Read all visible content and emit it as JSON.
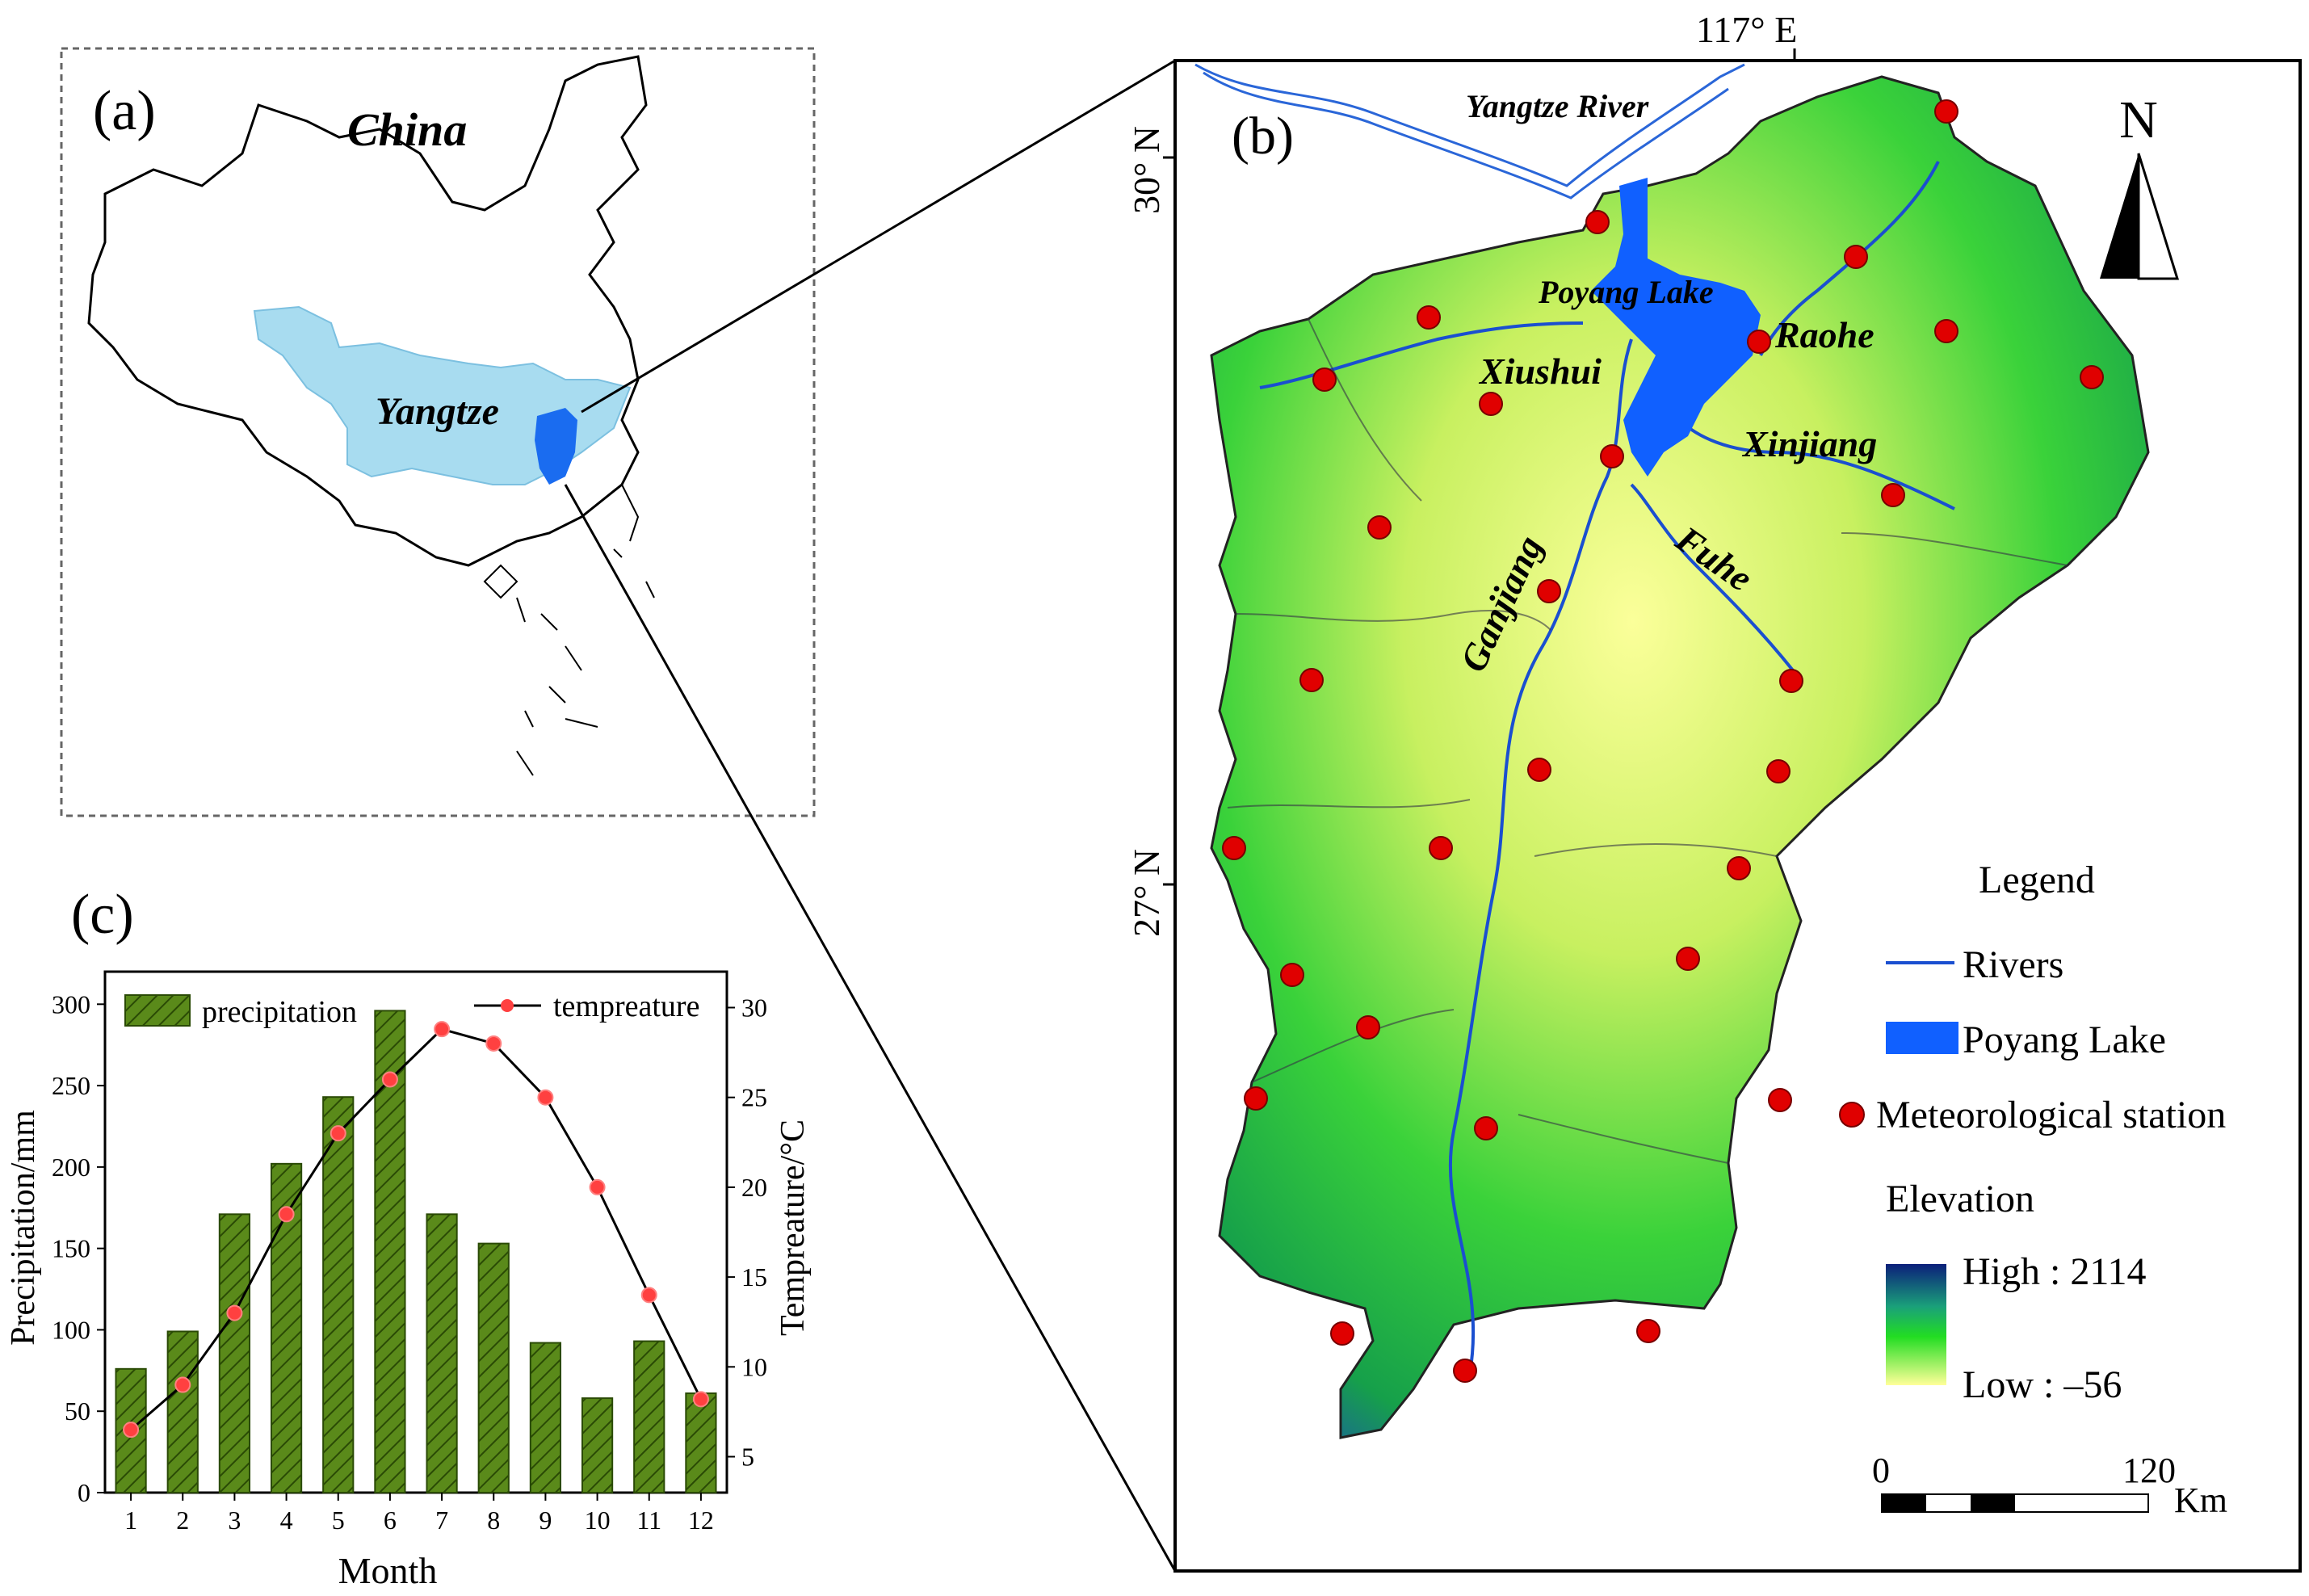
{
  "panel_a": {
    "label": "(a)",
    "country": "China",
    "basin": "Yangtze"
  },
  "panel_b": {
    "label": "(b)",
    "lon_label": "117° E",
    "lat_top": "30° N",
    "lat_mid": "27° N",
    "north": "N",
    "yangtze_river": "Yangtze River",
    "lake": "Poyang Lake",
    "rivers": [
      "Xiushui",
      "Raohe",
      "Xinjiang",
      "Fuhe",
      "Ganjiang"
    ],
    "legend": {
      "title": "Legend",
      "rivers": "Rivers",
      "lake": "Poyang Lake",
      "station": "Meteorological station",
      "elevation": "Elevation",
      "high": "High : 2114",
      "low": "Low : –56"
    },
    "scale": {
      "zero": "0",
      "max": "120",
      "unit": "Km"
    },
    "colors": {
      "station": "#e00000",
      "lake": "#1060ff",
      "river": "#1a4fd0",
      "high": "#0b1f7a",
      "mid": "#22cc22",
      "low": "#ffff99"
    }
  },
  "chart_data": {
    "type": "bar",
    "panel_label": "(c)",
    "categories": [
      "1",
      "2",
      "3",
      "4",
      "5",
      "6",
      "7",
      "8",
      "9",
      "10",
      "11",
      "12"
    ],
    "xlabel": "Month",
    "ylabel": "Precipitation/mm",
    "y2label": "Tempreature/°C",
    "ylim": [
      0,
      320
    ],
    "y2lim": [
      3,
      32
    ],
    "yticks": [
      "0",
      "50",
      "100",
      "150",
      "200",
      "250",
      "300"
    ],
    "y2ticks": [
      "5",
      "10",
      "15",
      "20",
      "25",
      "30"
    ],
    "series": [
      {
        "name": "precipitation",
        "type": "bar",
        "values": [
          76,
          99,
          171,
          202,
          243,
          296,
          171,
          153,
          92,
          58,
          93,
          61
        ]
      },
      {
        "name": "tempreature",
        "type": "line",
        "axis": "right",
        "values": [
          6.5,
          9.0,
          13.0,
          18.5,
          23.0,
          26.0,
          28.8,
          28.0,
          25.0,
          20.0,
          14.0,
          8.2
        ]
      }
    ],
    "colors": {
      "bar": "#4e7d12",
      "line": "#000000",
      "marker": "#ff4040"
    }
  }
}
